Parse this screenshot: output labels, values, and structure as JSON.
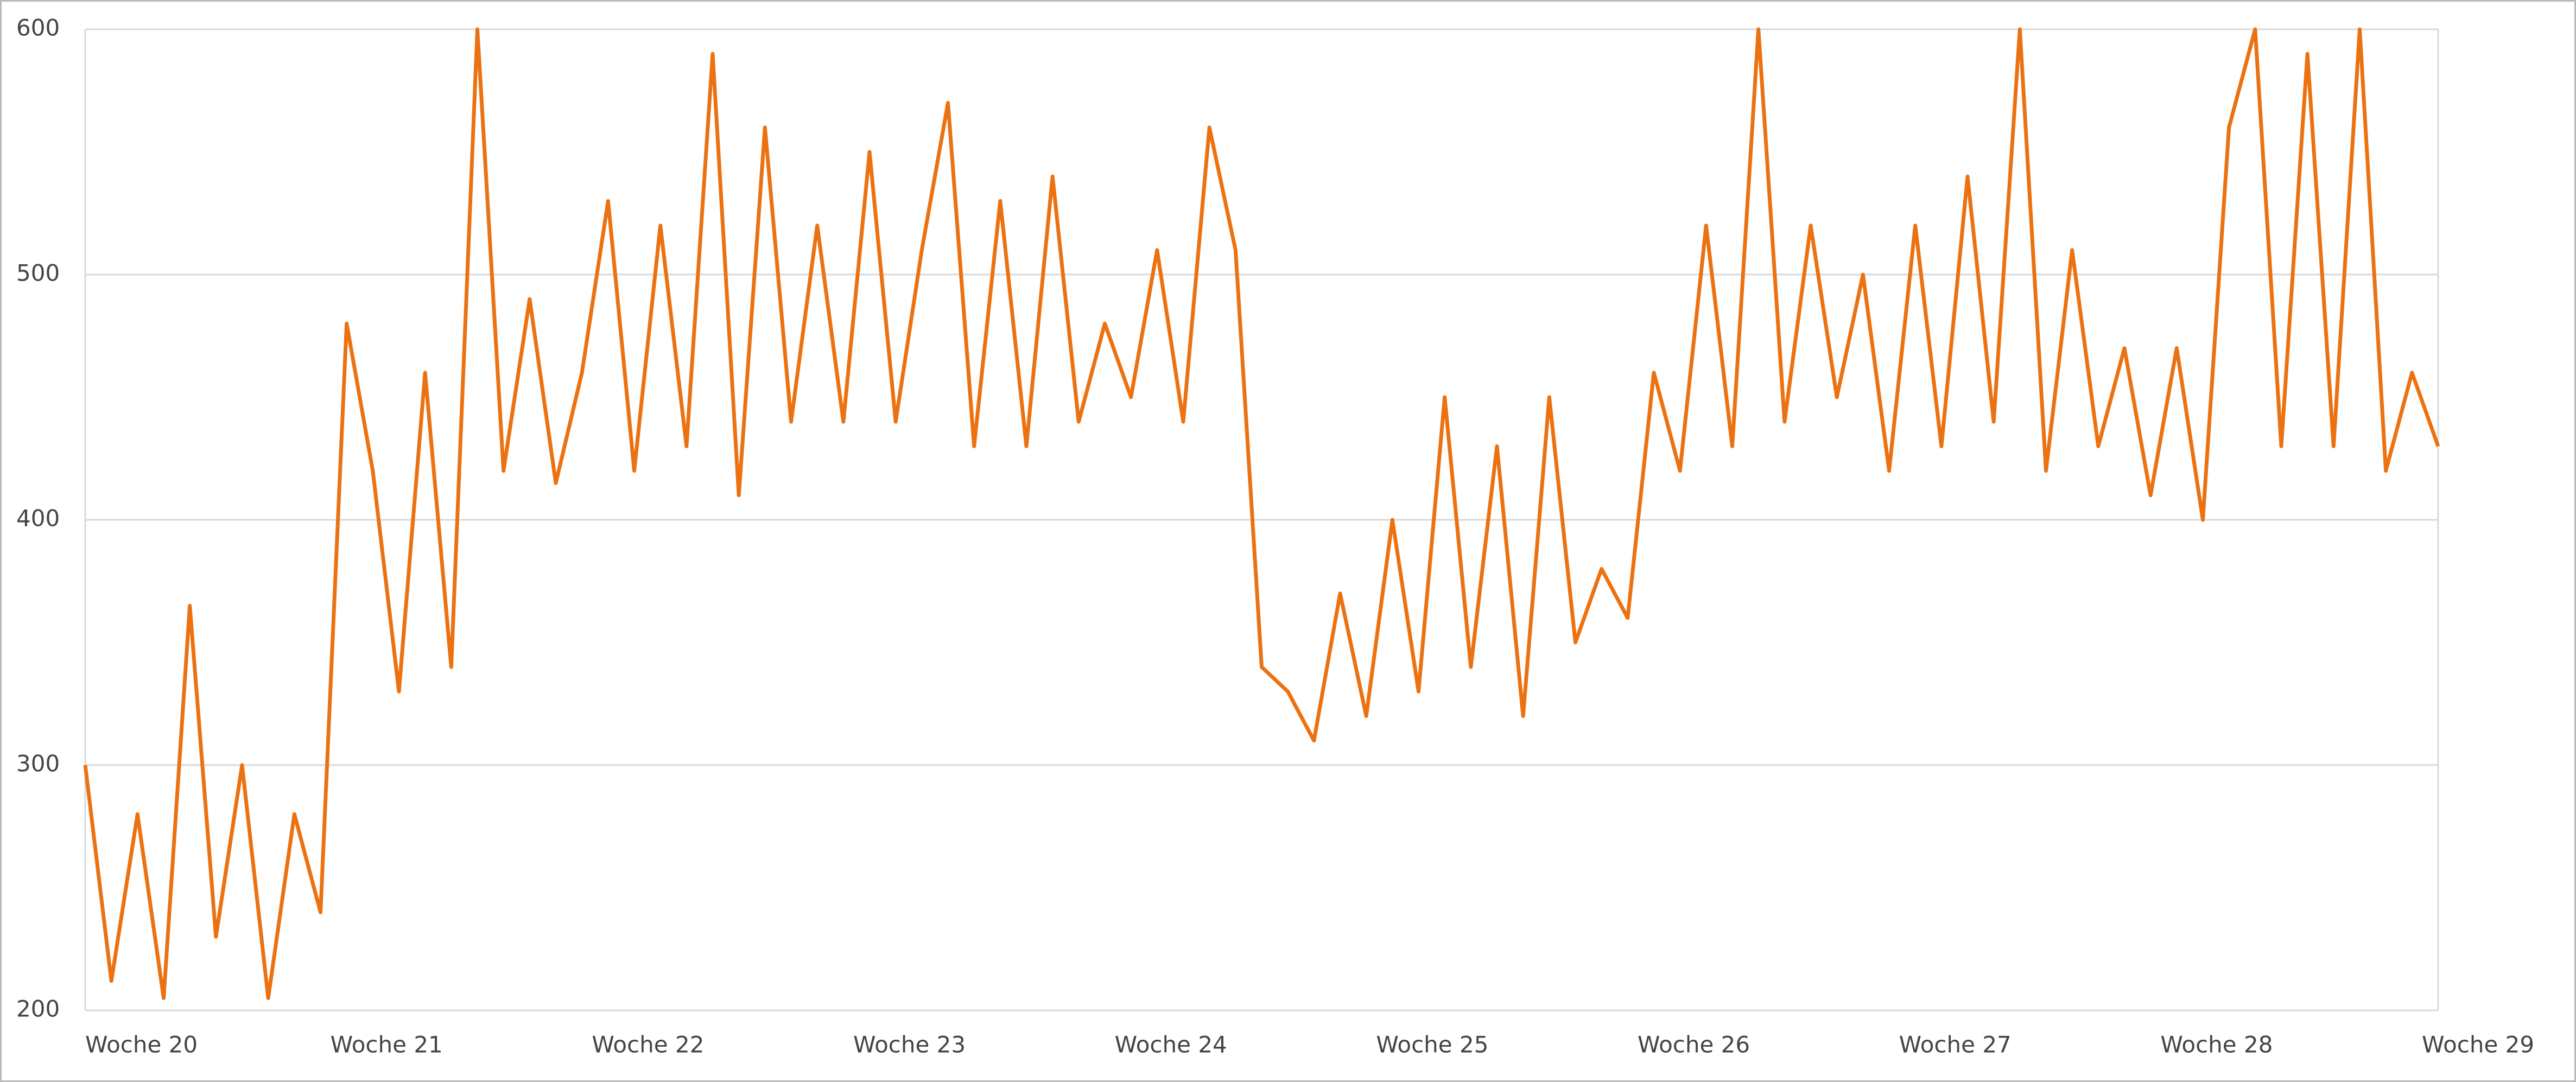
{
  "chart_data": {
    "type": "line",
    "x": [
      20.0,
      20.1,
      20.2,
      20.3,
      20.4,
      20.5,
      20.6,
      20.7,
      20.8,
      20.9,
      21.0,
      21.1,
      21.2,
      21.3,
      21.4,
      21.5,
      21.6,
      21.7,
      21.8,
      21.9,
      22.0,
      22.1,
      22.2,
      22.3,
      22.4,
      22.5,
      22.6,
      22.7,
      22.8,
      22.9,
      23.0,
      23.1,
      23.2,
      23.3,
      23.4,
      23.5,
      23.6,
      23.7,
      23.8,
      23.9,
      24.0,
      24.1,
      24.2,
      24.3,
      24.4,
      24.5,
      24.6,
      24.7,
      24.8,
      24.9,
      25.0,
      25.1,
      25.2,
      25.3,
      25.4,
      25.5,
      25.6,
      25.7,
      25.8,
      25.9,
      26.0,
      26.1,
      26.2,
      26.3,
      26.4,
      26.5,
      26.6,
      26.7,
      26.8,
      26.9,
      27.0,
      27.1,
      27.2,
      27.3,
      27.4,
      27.5,
      27.6,
      27.7,
      27.8,
      27.9,
      28.0,
      28.1,
      28.2,
      28.3,
      28.4,
      28.5,
      28.6,
      28.7,
      28.8,
      28.9,
      29.0
    ],
    "series": [
      {
        "color": "#ec7211",
        "values": [
          300,
          212,
          280,
          205,
          365,
          230,
          300,
          205,
          280,
          240,
          480,
          420,
          330,
          460,
          340,
          600,
          420,
          490,
          415,
          460,
          530,
          420,
          520,
          430,
          590,
          410,
          560,
          440,
          520,
          440,
          550,
          440,
          510,
          570,
          430,
          530,
          430,
          540,
          440,
          480,
          450,
          510,
          440,
          560,
          510,
          340,
          330,
          310,
          370,
          320,
          400,
          330,
          450,
          340,
          430,
          320,
          450,
          350,
          380,
          360,
          460,
          420,
          520,
          430,
          600,
          440,
          520,
          450,
          500,
          420,
          520,
          430,
          540,
          440,
          600,
          420,
          510,
          430,
          470,
          410,
          470,
          400,
          560,
          600,
          430,
          590,
          430,
          600,
          420,
          460,
          430
        ]
      }
    ],
    "xlim": [
      20,
      29
    ],
    "xticks": [
      {
        "value": 20,
        "label": "Woche 20"
      },
      {
        "value": 21,
        "label": "Woche 21"
      },
      {
        "value": 22,
        "label": "Woche 22"
      },
      {
        "value": 23,
        "label": "Woche 23"
      },
      {
        "value": 24,
        "label": "Woche 24"
      },
      {
        "value": 25,
        "label": "Woche 25"
      },
      {
        "value": 26,
        "label": "Woche 26"
      },
      {
        "value": 27,
        "label": "Woche 27"
      },
      {
        "value": 28,
        "label": "Woche 28"
      },
      {
        "value": 29,
        "label": "Woche 29"
      }
    ],
    "ylim": [
      200,
      600
    ],
    "yticks": [
      200,
      300,
      400,
      500,
      600
    ],
    "grid": true
  }
}
